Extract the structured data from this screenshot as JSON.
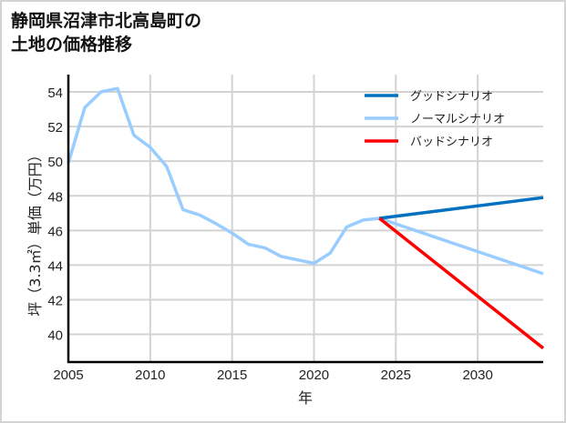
{
  "title_lines": [
    "静岡県沼津市北高島町の",
    "土地の価格推移"
  ],
  "chart_data": {
    "type": "line",
    "title": "静岡県沼津市北高島町の土地の価格推移",
    "xlabel": "年",
    "ylabel": "坪（3.3㎡）単価（万円）",
    "xlim": [
      2005,
      2034
    ],
    "ylim": [
      38.4,
      55
    ],
    "xticks": [
      2005,
      2010,
      2015,
      2020,
      2025,
      2030
    ],
    "yticks": [
      40,
      42,
      44,
      46,
      48,
      50,
      52,
      54
    ],
    "grid": true,
    "legend_position": "upper right",
    "series": [
      {
        "name": "ノーマルシナリオ",
        "color": "#99ccff",
        "x": [
          2005,
          2006,
          2007,
          2008,
          2009,
          2010,
          2011,
          2012,
          2013,
          2014,
          2015,
          2016,
          2017,
          2018,
          2019,
          2020,
          2021,
          2022,
          2023,
          2024,
          2034
        ],
        "values": [
          49.9,
          53.1,
          54.0,
          54.2,
          51.5,
          50.8,
          49.7,
          47.2,
          46.9,
          46.4,
          45.85,
          45.2,
          45.0,
          44.5,
          44.3,
          44.1,
          44.7,
          46.2,
          46.6,
          46.7,
          43.5
        ]
      },
      {
        "name": "グッドシナリオ",
        "color": "#0070c0",
        "x": [
          2024,
          2034
        ],
        "values": [
          46.7,
          47.9
        ]
      },
      {
        "name": "バッドシナリオ",
        "color": "#ff0000",
        "x": [
          2024,
          2034
        ],
        "values": [
          46.7,
          39.2
        ]
      }
    ],
    "legend": [
      {
        "label": "グッドシナリオ",
        "color": "#0070c0"
      },
      {
        "label": "ノーマルシナリオ",
        "color": "#99ccff"
      },
      {
        "label": "バッドシナリオ",
        "color": "#ff0000"
      }
    ]
  }
}
